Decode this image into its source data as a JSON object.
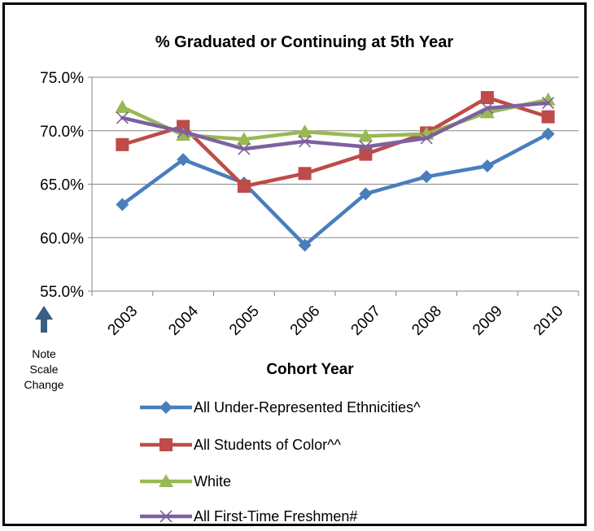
{
  "chart_data": {
    "type": "line",
    "title": "% Graduated or Continuing at 5th Year",
    "xlabel": "Cohort Year",
    "ylabel": "",
    "categories": [
      "2003",
      "2004",
      "2005",
      "2006",
      "2007",
      "2008",
      "2009",
      "2010"
    ],
    "ylim": [
      55.0,
      75.0
    ],
    "yticks": [
      "55.0%",
      "60.0%",
      "65.0%",
      "70.0%",
      "75.0%"
    ],
    "ytick_values": [
      55,
      60,
      65,
      70,
      75
    ],
    "grid": true,
    "legend_position": "bottom",
    "series": [
      {
        "name": "All Under-Represented Ethnicities^",
        "color": "#4a7ebb",
        "marker": "diamond",
        "values": [
          63.1,
          67.3,
          65.1,
          59.3,
          64.1,
          65.7,
          66.7,
          69.7
        ]
      },
      {
        "name": "All Students of Color^^",
        "color": "#be4b48",
        "marker": "square",
        "values": [
          68.7,
          70.4,
          64.8,
          66.0,
          67.8,
          69.8,
          73.1,
          71.3
        ]
      },
      {
        "name": "White",
        "color": "#98b954",
        "marker": "triangle",
        "values": [
          72.2,
          69.6,
          69.2,
          69.9,
          69.5,
          69.7,
          71.7,
          72.9
        ]
      },
      {
        "name": "All First-Time Freshmen#",
        "color": "#7d60a0",
        "marker": "x",
        "values": [
          71.2,
          69.9,
          68.3,
          69.0,
          68.5,
          69.3,
          72.1,
          72.6
        ]
      }
    ]
  },
  "note": {
    "lines": [
      "Note",
      "Scale",
      "Change"
    ],
    "arrow_icon": "up-arrow-icon",
    "arrow_color": "#3b5e86"
  }
}
